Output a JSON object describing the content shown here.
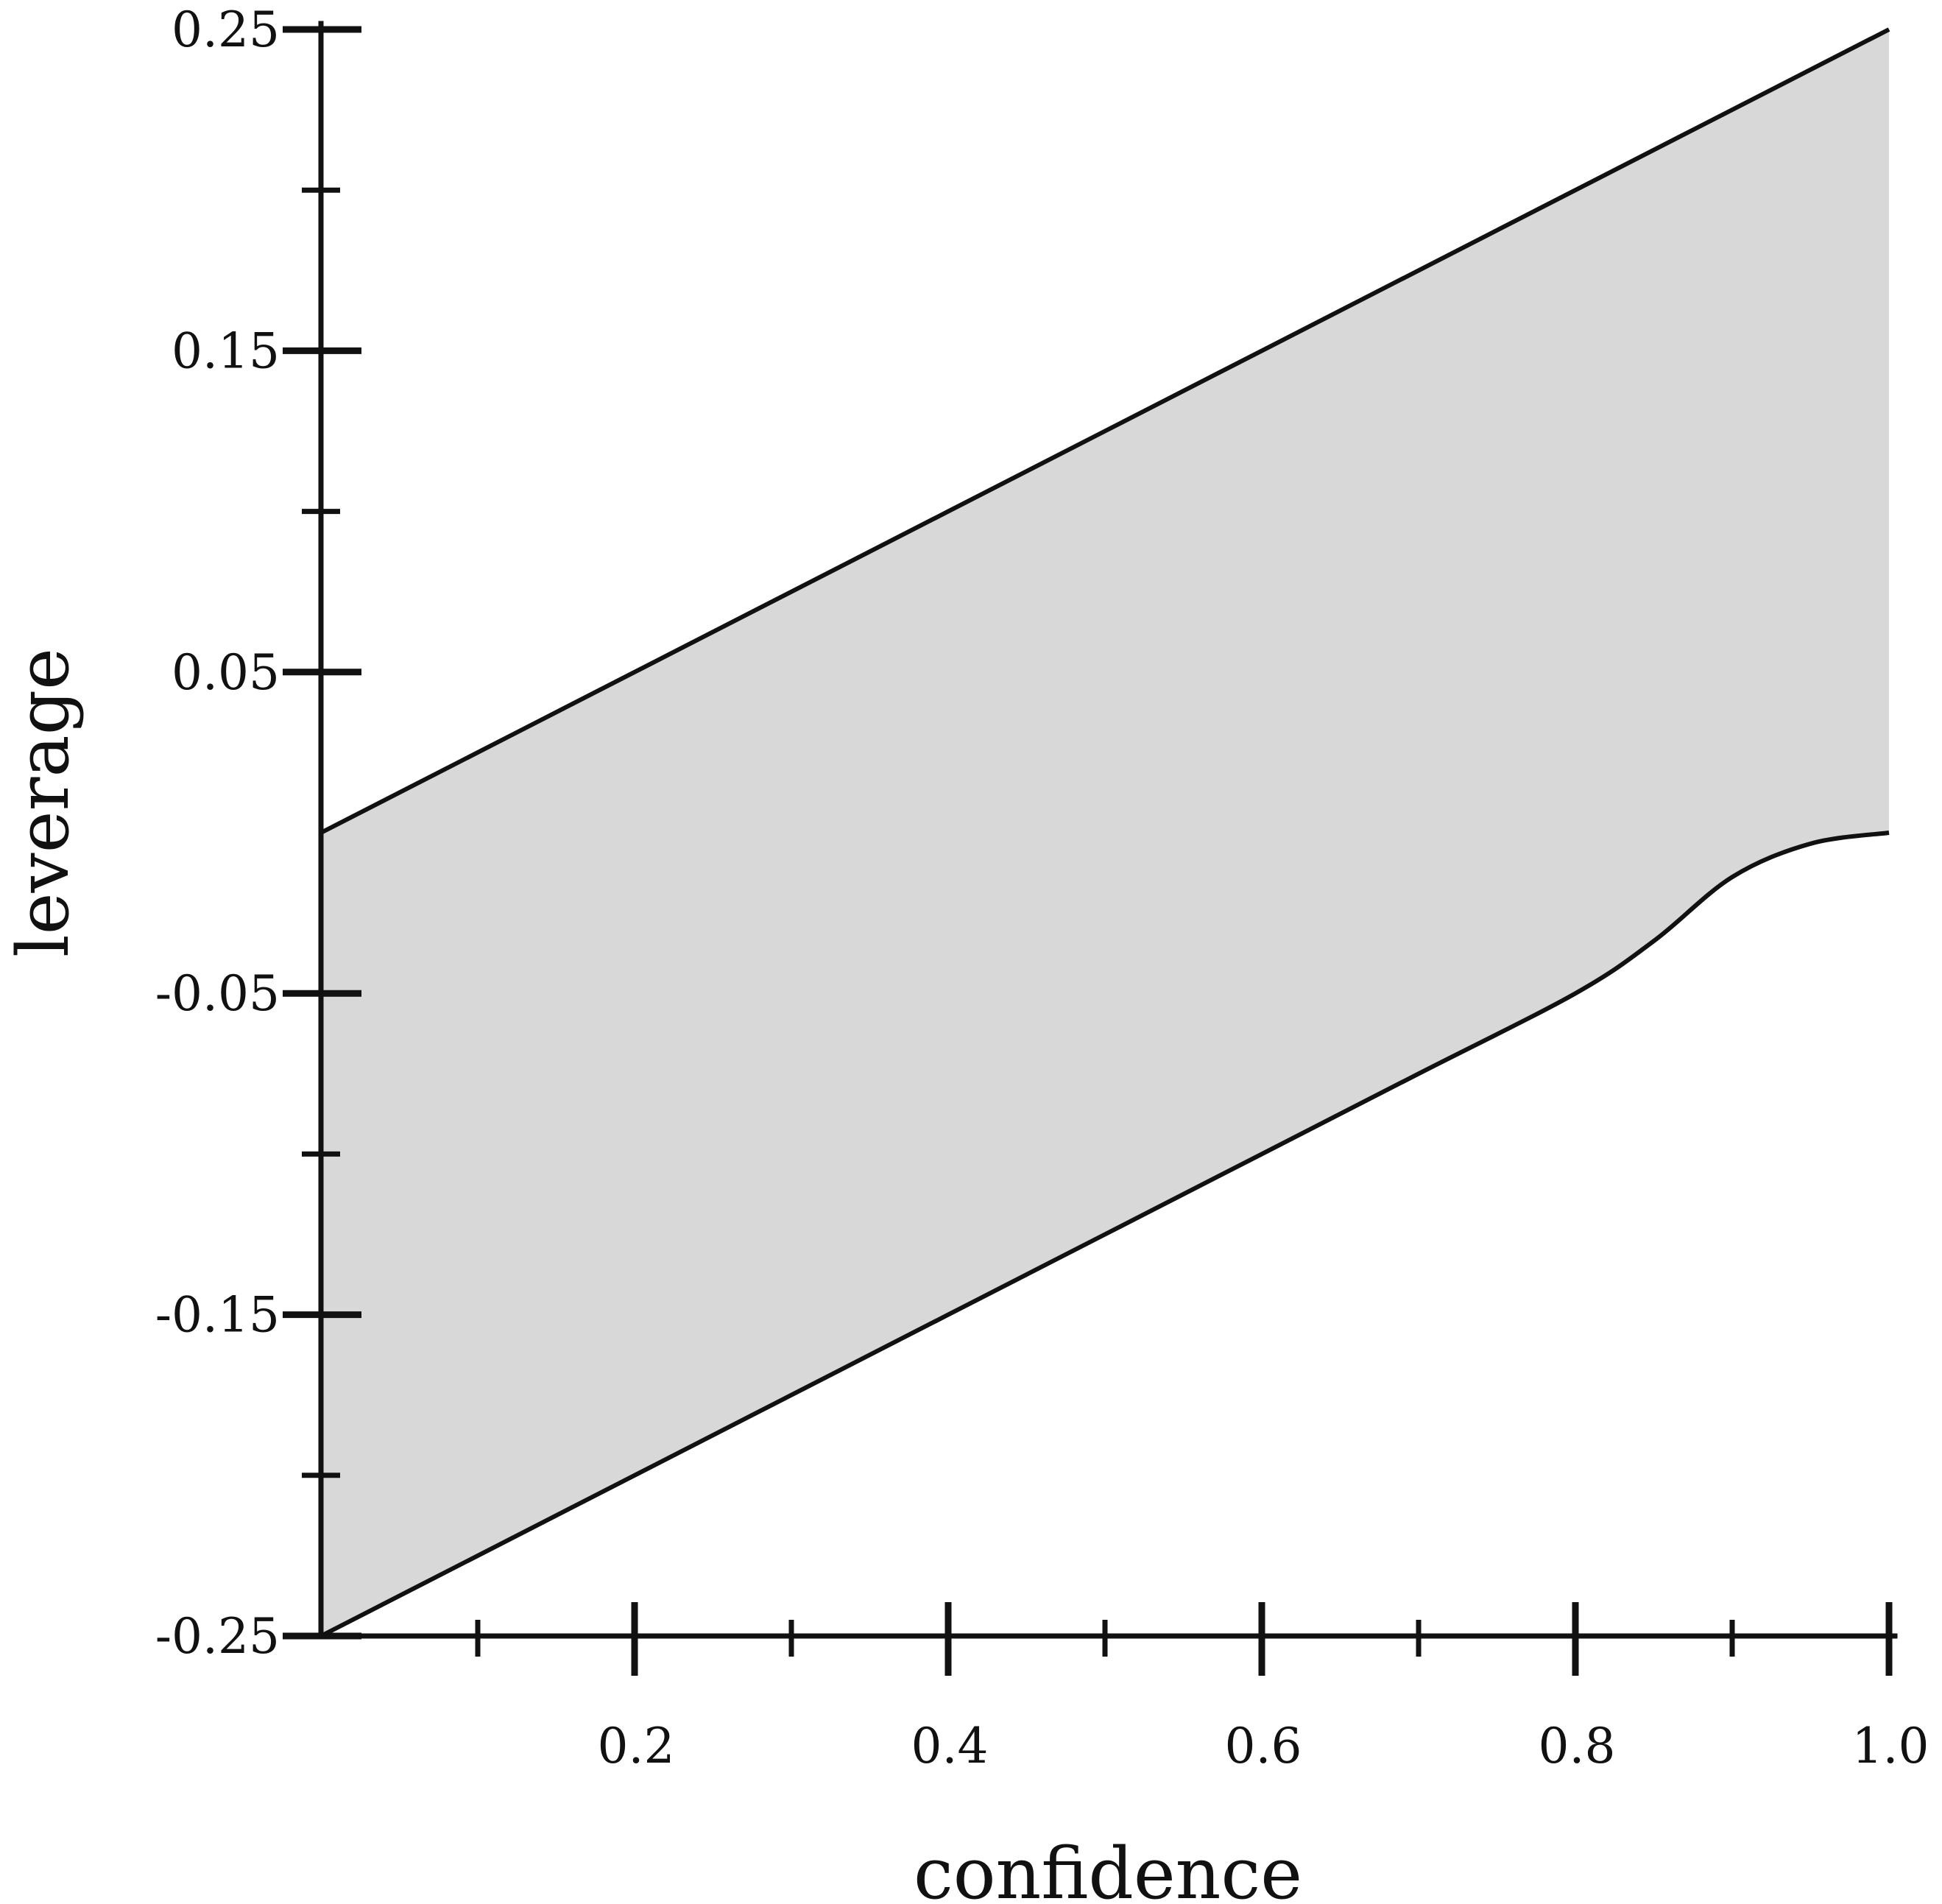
{
  "chart_data": {
    "type": "area",
    "title": "",
    "xlabel": "confidence",
    "ylabel": "leverage",
    "xlim": [
      0,
      1.0
    ],
    "ylim": [
      -0.25,
      0.25
    ],
    "x_ticks": {
      "major": [
        0.2,
        0.4,
        0.6,
        0.8,
        1.0
      ],
      "major_labels": [
        "0.2",
        "0.4",
        "0.6",
        "0.8",
        "1.0"
      ],
      "minor": [
        0.1,
        0.3,
        0.5,
        0.7,
        0.9
      ]
    },
    "y_ticks": {
      "major": [
        0.25,
        0.15,
        0.05,
        -0.05,
        -0.15,
        -0.25
      ],
      "major_labels": [
        "0.25",
        "0.15",
        "0.05",
        "-0.05",
        "-0.15",
        "-0.25"
      ],
      "minor": [
        0.2,
        0.1,
        -0.1,
        -0.2
      ]
    },
    "grid": false,
    "legend": "none",
    "series": [
      {
        "role": "upper",
        "x": [
          0,
          0.2,
          0.4,
          0.6,
          0.8,
          1.0
        ],
        "y": [
          0,
          0.05,
          0.1,
          0.15,
          0.2,
          0.25
        ]
      },
      {
        "role": "lower",
        "x": [
          0,
          0.1,
          0.2,
          0.3,
          0.4,
          0.5,
          0.6,
          0.7,
          0.8,
          0.85,
          0.9,
          0.95,
          1.0
        ],
        "y": [
          -0.25,
          -0.225,
          -0.2,
          -0.175,
          -0.15,
          -0.125,
          -0.1,
          -0.075,
          -0.05,
          -0.0337,
          -0.0138,
          -0.0034,
          0
        ]
      }
    ],
    "colors": {
      "fill": "#d8d8d8",
      "line": "#111111",
      "axis": "#111111"
    }
  }
}
